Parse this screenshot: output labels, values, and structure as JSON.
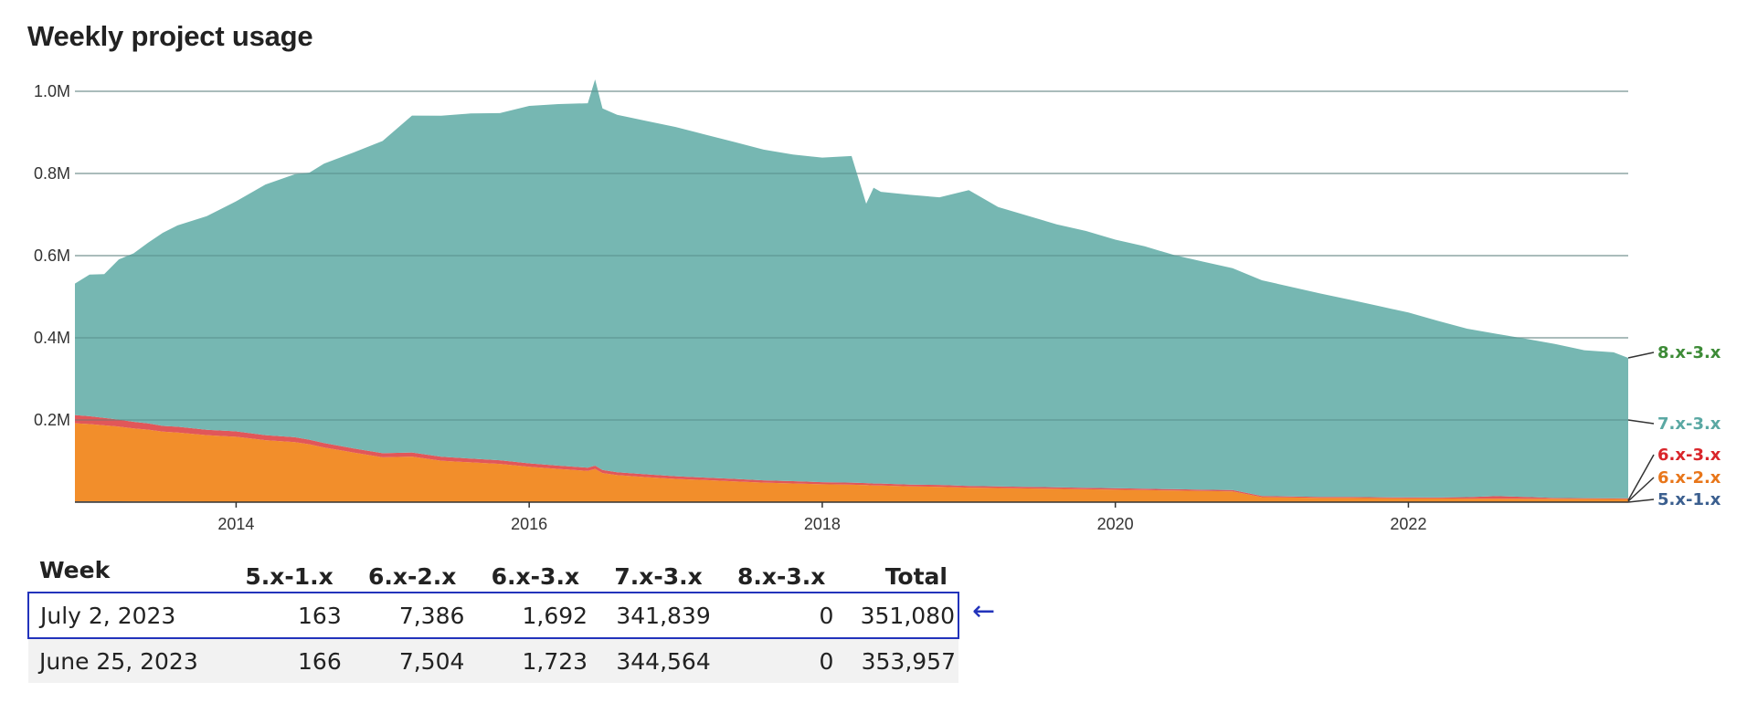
{
  "title": "Weekly project usage",
  "chart_data": {
    "type": "area",
    "stacked": true,
    "title": "Weekly project usage",
    "xlabel": "",
    "ylabel": "",
    "ylim": [
      0,
      1000000
    ],
    "y_ticks": [
      "0.2M",
      "0.4M",
      "0.6M",
      "0.8M",
      "1.0M"
    ],
    "x_ticks": [
      "2014",
      "2016",
      "2018",
      "2020",
      "2022"
    ],
    "grid": true,
    "legend": "right-edge labels",
    "x": [
      2012.9,
      2013.0,
      2013.1,
      2013.2,
      2013.3,
      2013.4,
      2013.5,
      2013.6,
      2013.8,
      2014.0,
      2014.2,
      2014.4,
      2014.5,
      2014.6,
      2014.8,
      2015.0,
      2015.2,
      2015.4,
      2015.6,
      2015.8,
      2016.0,
      2016.2,
      2016.4,
      2016.45,
      2016.5,
      2016.6,
      2016.8,
      2017.0,
      2017.2,
      2017.4,
      2017.6,
      2017.8,
      2018.0,
      2018.2,
      2018.3,
      2018.35,
      2018.4,
      2018.6,
      2018.8,
      2019.0,
      2019.2,
      2019.4,
      2019.6,
      2019.8,
      2020.0,
      2020.2,
      2020.4,
      2020.6,
      2020.8,
      2021.0,
      2021.2,
      2021.4,
      2021.6,
      2021.8,
      2022.0,
      2022.2,
      2022.4,
      2022.6,
      2022.8,
      2023.0,
      2023.2,
      2023.4,
      2023.5
    ],
    "series": [
      {
        "name": "5.x-1.x",
        "color": "#4e79a7",
        "values": [
          2000,
          2000,
          2000,
          2000,
          1500,
          1500,
          1500,
          1500,
          1200,
          1200,
          1000,
          1000,
          1000,
          1000,
          1000,
          1000,
          1000,
          1000,
          1000,
          1000,
          900,
          900,
          900,
          900,
          800,
          800,
          800,
          700,
          700,
          700,
          600,
          600,
          600,
          500,
          500,
          500,
          500,
          400,
          400,
          400,
          400,
          350,
          350,
          300,
          300,
          300,
          280,
          260,
          250,
          240,
          230,
          220,
          210,
          200,
          200,
          190,
          185,
          180,
          175,
          170,
          168,
          165,
          163
        ]
      },
      {
        "name": "6.x-2.x",
        "color": "#f28e2b",
        "values": [
          190000,
          188000,
          185000,
          182000,
          178000,
          175000,
          170000,
          168000,
          162000,
          158000,
          150000,
          145000,
          140000,
          132000,
          120000,
          108000,
          110000,
          100000,
          96000,
          92000,
          85000,
          80000,
          75000,
          80000,
          70000,
          65000,
          60000,
          56000,
          53000,
          50000,
          47000,
          45000,
          43000,
          42000,
          41000,
          40000,
          40000,
          38000,
          37000,
          35000,
          34000,
          33000,
          32000,
          31000,
          30000,
          29000,
          28000,
          27000,
          26000,
          12000,
          11000,
          10000,
          10000,
          9500,
          9000,
          9000,
          8500,
          8500,
          8000,
          8000,
          7800,
          7600,
          7386
        ]
      },
      {
        "name": "6.x-3.x",
        "color": "#e15759",
        "values": [
          20000,
          19000,
          18000,
          17000,
          16000,
          15000,
          14000,
          14000,
          13000,
          13000,
          12000,
          12000,
          11000,
          11000,
          10000,
          10000,
          10000,
          9500,
          9000,
          9000,
          8500,
          8000,
          8000,
          8000,
          7500,
          7000,
          7000,
          6500,
          6000,
          6000,
          5500,
          5500,
          5000,
          5000,
          5000,
          4800,
          4800,
          4500,
          4500,
          4200,
          4000,
          4000,
          3800,
          3600,
          3500,
          3400,
          3200,
          3000,
          3000,
          2800,
          2700,
          2600,
          2500,
          2400,
          2300,
          2200,
          3500,
          6000,
          4500,
          2000,
          1900,
          1800,
          1692
        ]
      },
      {
        "name": "7.x-3.x",
        "color": "#76b7b2",
        "values": [
          320000,
          345000,
          350000,
          390000,
          410000,
          440000,
          470000,
          490000,
          520000,
          560000,
          610000,
          640000,
          650000,
          680000,
          720000,
          760000,
          820000,
          830000,
          840000,
          845000,
          870000,
          880000,
          887000,
          940000,
          880000,
          870000,
          860000,
          850000,
          835000,
          820000,
          805000,
          795000,
          790000,
          795000,
          680000,
          720000,
          710000,
          705000,
          700000,
          720000,
          680000,
          660000,
          640000,
          625000,
          605000,
          590000,
          570000,
          555000,
          540000,
          525000,
          510000,
          495000,
          480000,
          465000,
          450000,
          430000,
          410000,
          395000,
          385000,
          375000,
          360000,
          355000,
          341839
        ]
      },
      {
        "name": "8.x-3.x",
        "color": "#3d8b37",
        "values": [
          0,
          0,
          0,
          0,
          0,
          0,
          0,
          0,
          0,
          0,
          0,
          0,
          0,
          0,
          0,
          0,
          0,
          0,
          0,
          0,
          0,
          0,
          0,
          0,
          0,
          0,
          0,
          0,
          0,
          0,
          0,
          0,
          0,
          0,
          0,
          0,
          0,
          0,
          0,
          0,
          0,
          0,
          0,
          0,
          0,
          0,
          0,
          0,
          0,
          0,
          0,
          0,
          0,
          0,
          0,
          0,
          0,
          0,
          0,
          0,
          0,
          0,
          0
        ]
      }
    ],
    "end_labels": [
      {
        "name": "8.x-3.x",
        "color": "#3d8b37"
      },
      {
        "name": "7.x-3.x",
        "color": "#5aa8a3"
      },
      {
        "name": "6.x-3.x",
        "color": "#d9262b"
      },
      {
        "name": "6.x-2.x",
        "color": "#e8761a"
      },
      {
        "name": "5.x-1.x",
        "color": "#3b5f8f"
      }
    ]
  },
  "table": {
    "headers": [
      "Week",
      "5.x-1.x",
      "6.x-2.x",
      "6.x-3.x",
      "7.x-3.x",
      "8.x-3.x",
      "Total"
    ],
    "rows": [
      [
        "July 2, 2023",
        "163",
        "7,386",
        "1,692",
        "341,839",
        "0",
        "351,080"
      ],
      [
        "June 25, 2023",
        "166",
        "7,504",
        "1,723",
        "344,564",
        "0",
        "353,957"
      ]
    ],
    "selected_row_marker": "←"
  }
}
